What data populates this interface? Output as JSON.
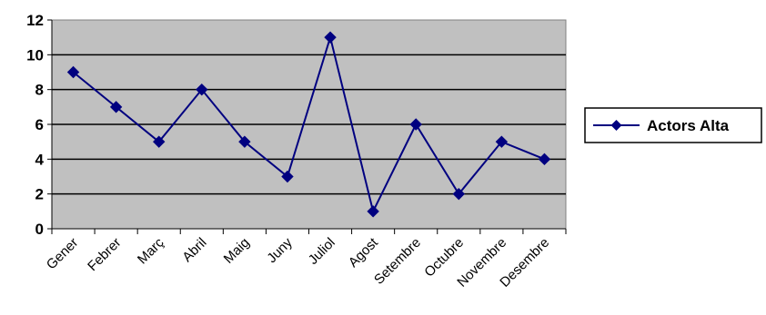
{
  "chart_data": {
    "type": "line",
    "categories": [
      "Gener",
      "Febrer",
      "Març",
      "Abril",
      "Maig",
      "Juny",
      "Juliol",
      "Agost",
      "Setembre",
      "Octubre",
      "Novembre",
      "Desembre"
    ],
    "series": [
      {
        "name": "Actors Alta",
        "values": [
          9,
          7,
          5,
          8,
          5,
          3,
          11,
          1,
          6,
          2,
          5,
          4
        ],
        "color": "#000080",
        "marker": "diamond"
      }
    ],
    "ylim": [
      0,
      12
    ],
    "yticks": [
      "0",
      "2",
      "4",
      "6",
      "8",
      "10",
      "12"
    ],
    "grid": "horizontal",
    "plot_background": "#c0c0c0",
    "legend_position": "right"
  }
}
